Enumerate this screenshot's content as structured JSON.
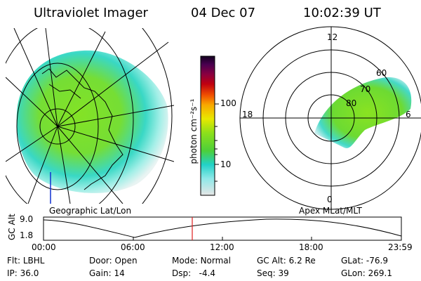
{
  "header": {
    "instrument": "Ultraviolet Imager",
    "date": "04 Dec 07",
    "time": "10:02:39 UT"
  },
  "geo_panel": {
    "label": "Geographic Lat/Lon"
  },
  "colorbar": {
    "unit_label": "photon cm⁻²s⁻¹",
    "ticks": [
      "100",
      "10"
    ],
    "scale": "log"
  },
  "polar_panel": {
    "label": "Apex MLat/MLT",
    "mlt_labels": [
      "12",
      "18",
      "6",
      "0"
    ],
    "lat_labels": [
      "60",
      "70",
      "80"
    ]
  },
  "altitude_plot": {
    "ylabel": "GC Alt",
    "y_ticks": [
      "9.0",
      "1.8"
    ],
    "x_ticks": [
      "00:00",
      "06:00",
      "12:00",
      "18:00",
      "23:59"
    ],
    "current_time_marker": "10:02"
  },
  "status": {
    "row1": [
      {
        "label": "Flt:",
        "value": "LBHL"
      },
      {
        "label": "Door:",
        "value": "Open"
      },
      {
        "label": "Mode:",
        "value": "Normal"
      },
      {
        "label": "GC Alt:",
        "value": "6.2 Re"
      },
      {
        "label": "GLat:",
        "value": "-76.9"
      }
    ],
    "row2": [
      {
        "label": "IP:",
        "value": "36.0"
      },
      {
        "label": "Gain:",
        "value": "14"
      },
      {
        "label": "Dsp:",
        "value": "-4.4"
      },
      {
        "label": "Seq:",
        "value": "39"
      },
      {
        "label": "GLon:",
        "value": "269.1"
      }
    ]
  }
}
